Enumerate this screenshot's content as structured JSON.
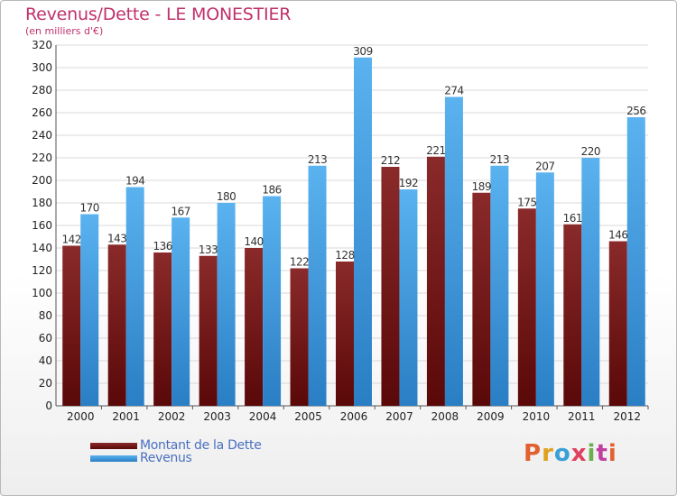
{
  "chart_data": {
    "type": "bar",
    "title": "Revenus/Dette - LE MONESTIER",
    "subtitle": "(en milliers d'€)",
    "categories": [
      "2000",
      "2001",
      "2002",
      "2003",
      "2004",
      "2005",
      "2006",
      "2007",
      "2008",
      "2009",
      "2010",
      "2011",
      "2012"
    ],
    "series": [
      {
        "name": "Montant de la Dette",
        "color": "#7a1a1a",
        "values": [
          142,
          143,
          136,
          133,
          140,
          122,
          128,
          212,
          221,
          189,
          175,
          161,
          146
        ]
      },
      {
        "name": "Revenus",
        "color": "#4aa3e6",
        "values": [
          170,
          194,
          167,
          180,
          186,
          213,
          309,
          192,
          274,
          213,
          207,
          220,
          256
        ]
      }
    ],
    "ylim": [
      0,
      320
    ],
    "ytick_step": 20,
    "grid": true,
    "legend": "bottom-left"
  },
  "logo": {
    "text": "Proxiti",
    "colors": [
      "#e06030",
      "#e0a020",
      "#3aa0d8",
      "#e04060",
      "#6ab04c",
      "#c040a0",
      "#e06030"
    ]
  }
}
